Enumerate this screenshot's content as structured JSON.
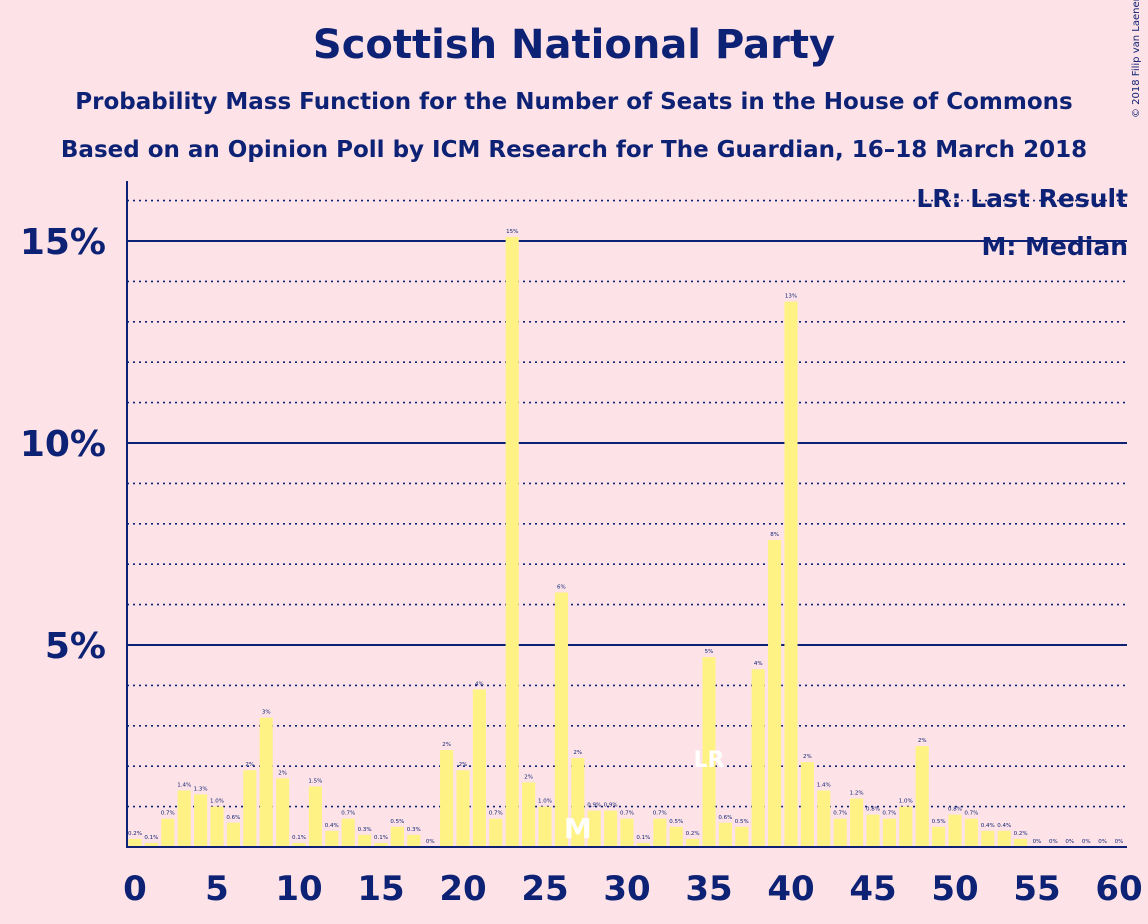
{
  "title": "Scottish National Party",
  "subtitle": "Probability Mass Function for the Number of Seats in the House of Commons",
  "subtitle2": "Based on an Opinion Poll by ICM Research for The Guardian, 16–18 March 2018",
  "copyright": "© 2018 Filip van Laenen",
  "legend": {
    "last_result": "LR: Last Result",
    "median": "M: Median"
  },
  "colors": {
    "background": "#fde3e7",
    "bar": "#fff284",
    "text": "#0e2275",
    "grid": "#0e2275"
  },
  "chart_data": {
    "type": "bar",
    "x": [
      0,
      1,
      2,
      3,
      4,
      5,
      6,
      7,
      8,
      9,
      10,
      11,
      12,
      13,
      14,
      15,
      16,
      17,
      18,
      19,
      20,
      21,
      22,
      23,
      24,
      25,
      26,
      27,
      28,
      29,
      30,
      31,
      32,
      33,
      34,
      35,
      36,
      37,
      38,
      39,
      40,
      41,
      42,
      43,
      44,
      45,
      46,
      47,
      48,
      49,
      50,
      51,
      52,
      53,
      54,
      55,
      56,
      57,
      58,
      59,
      60
    ],
    "values": [
      0.2,
      0.1,
      0.7,
      1.4,
      1.3,
      1.0,
      0.6,
      1.9,
      3.2,
      1.7,
      0.1,
      1.5,
      0.4,
      0.7,
      0.3,
      0.1,
      0.5,
      0.3,
      0.0,
      2.4,
      1.9,
      3.9,
      0.7,
      15.1,
      1.6,
      1.0,
      6.3,
      2.2,
      0.9,
      0.9,
      0.7,
      0.1,
      0.7,
      0.5,
      0.2,
      4.7,
      0.6,
      0.5,
      4.4,
      7.6,
      13.5,
      2.1,
      1.4,
      0.7,
      1.2,
      0.8,
      0.7,
      1.0,
      2.5,
      0.5,
      0.8,
      0.7,
      0.4,
      0.4,
      0.2,
      0.0,
      0.0,
      0.0,
      0.0,
      0.0,
      0.0
    ],
    "bar_labels": [
      "0.2%",
      "0.1%",
      "0.7%",
      "1.4%",
      "1.3%",
      "1.0%",
      "0.6%",
      "2%",
      "3%",
      "2%",
      "0.1%",
      "1.5%",
      "0.4%",
      "0.7%",
      "0.3%",
      "0.1%",
      "0.5%",
      "0.3%",
      "0%",
      "2%",
      "2%",
      "4%",
      "0.7%",
      "15%",
      "2%",
      "1.0%",
      "6%",
      "2%",
      "0.9%",
      "0.9%",
      "0.7%",
      "0.1%",
      "0.7%",
      "0.5%",
      "0.2%",
      "5%",
      "0.6%",
      "0.5%",
      "4%",
      "8%",
      "13%",
      "2%",
      "1.4%",
      "0.7%",
      "1.2%",
      "0.8%",
      "0.7%",
      "1.0%",
      "2%",
      "0.5%",
      "0.8%",
      "0.7%",
      "0.4%",
      "0.4%",
      "0.2%",
      "0%",
      "0%",
      "0%",
      "0%",
      "0%",
      "0%"
    ],
    "last_result_seat": 35,
    "median_seat": 27,
    "marker_labels": {
      "last_result": "LR",
      "median": "M"
    },
    "xlim": [
      0,
      60
    ],
    "ylim": [
      0,
      16.5
    ],
    "x_ticks": [
      "0",
      "5",
      "10",
      "15",
      "20",
      "25",
      "30",
      "35",
      "40",
      "45",
      "50",
      "55",
      "60"
    ],
    "y_ticks": [
      "5%",
      "10%",
      "15%"
    ],
    "y_tick_values": [
      5,
      10,
      15
    ],
    "minor_grid_step": 1,
    "grid": true,
    "legend_position": "top-right"
  }
}
